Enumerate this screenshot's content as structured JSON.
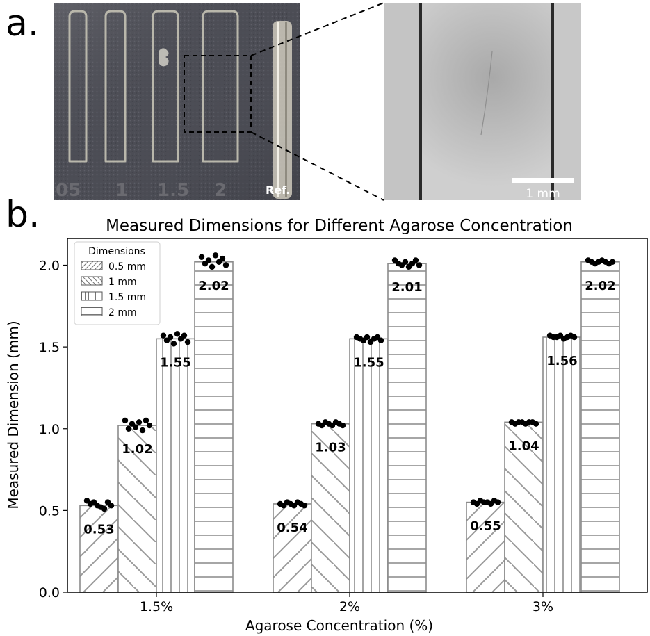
{
  "panels": {
    "a_label": "a.",
    "b_label": "b."
  },
  "photo_left": {
    "ref_label": "Ref.",
    "engraved_labels": [
      "05",
      "1",
      "1.5",
      "2"
    ]
  },
  "photo_right": {
    "scale_bar_label": "1 mm"
  },
  "colors": {
    "bar_edge": "#8c8c8c",
    "hatch": "#9a9a9a",
    "point": "#000000",
    "photo_bg": "#4c4d55",
    "zoom_bg": "#c9c9c9"
  },
  "chart_data": {
    "type": "bar",
    "title": "Measured Dimensions for Different Agarose Concentration",
    "xlabel": "Agarose Concentration (%)",
    "ylabel": "Measured Dimension (mm)",
    "categories": [
      "1.5%",
      "2%",
      "3%"
    ],
    "ylim": [
      0,
      2.2
    ],
    "yticks": [
      "0.0",
      "0.5",
      "1.0",
      "1.5",
      "2.0"
    ],
    "legend": {
      "title": "Dimensions",
      "placement": "top-left"
    },
    "series": [
      {
        "name": "0.5 mm",
        "hatch": "diag-up",
        "values": [
          0.53,
          0.54,
          0.55
        ],
        "labels": [
          "0.53",
          "0.54",
          "0.55"
        ],
        "points": [
          [
            0.56,
            0.54,
            0.55,
            0.53,
            0.52,
            0.51,
            0.55,
            0.53
          ],
          [
            0.54,
            0.53,
            0.55,
            0.54,
            0.53,
            0.55,
            0.54,
            0.53
          ],
          [
            0.55,
            0.54,
            0.56,
            0.55,
            0.55,
            0.54,
            0.56,
            0.55
          ]
        ]
      },
      {
        "name": "1 mm",
        "hatch": "diag-down",
        "values": [
          1.02,
          1.03,
          1.04
        ],
        "labels": [
          "1.02",
          "1.03",
          "1.04"
        ],
        "points": [
          [
            1.05,
            1.0,
            1.03,
            1.01,
            1.04,
            0.99,
            1.05,
            1.02
          ],
          [
            1.03,
            1.02,
            1.04,
            1.03,
            1.02,
            1.04,
            1.03,
            1.02
          ],
          [
            1.04,
            1.03,
            1.04,
            1.04,
            1.03,
            1.04,
            1.04,
            1.03
          ]
        ]
      },
      {
        "name": "1.5 mm",
        "hatch": "vertical",
        "values": [
          1.55,
          1.55,
          1.56
        ],
        "labels": [
          "1.55",
          "1.55",
          "1.56"
        ],
        "points": [
          [
            1.57,
            1.54,
            1.56,
            1.52,
            1.58,
            1.55,
            1.57,
            1.53
          ],
          [
            1.56,
            1.55,
            1.54,
            1.56,
            1.53,
            1.55,
            1.56,
            1.54
          ],
          [
            1.57,
            1.56,
            1.56,
            1.57,
            1.55,
            1.56,
            1.57,
            1.56
          ]
        ]
      },
      {
        "name": "2 mm",
        "hatch": "horizontal",
        "values": [
          2.02,
          2.01,
          2.02
        ],
        "labels": [
          "2.02",
          "2.01",
          "2.02"
        ],
        "points": [
          [
            2.05,
            2.01,
            2.03,
            1.99,
            2.06,
            2.02,
            2.04,
            2.0
          ],
          [
            2.03,
            2.01,
            2.0,
            2.02,
            1.99,
            2.01,
            2.03,
            2.0
          ],
          [
            2.03,
            2.02,
            2.01,
            2.02,
            2.03,
            2.02,
            2.01,
            2.02
          ]
        ]
      }
    ]
  }
}
